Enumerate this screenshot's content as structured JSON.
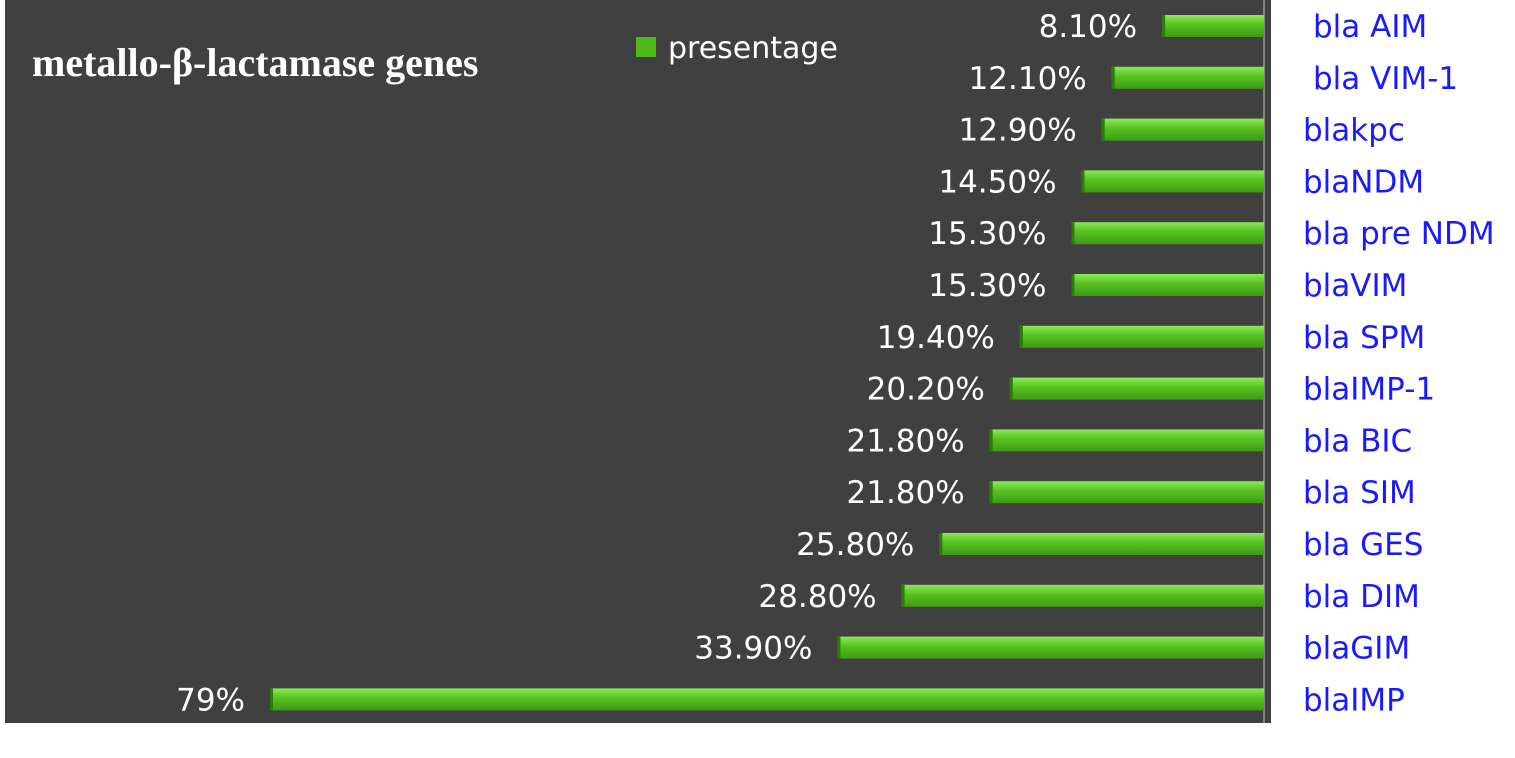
{
  "chart_data": {
    "type": "bar",
    "orientation": "horizontal",
    "title": "metallo-β-lactamase genes",
    "xlabel": "",
    "ylabel": "",
    "grid": false,
    "legend_position": "top",
    "xlim": [
      0,
      79
    ],
    "categories": [
      "bla AIM",
      "bla VIM-1",
      "blakpc",
      "blaNDM",
      "bla pre NDM",
      "blaVIM",
      "bla SPM",
      "blaIMP-1",
      "bla BIC",
      "bla SIM",
      "bla GES",
      "bla DIM",
      "blaGIM",
      "blaIMP"
    ],
    "series": [
      {
        "name": "presentage",
        "values": [
          8.1,
          12.1,
          12.9,
          14.5,
          15.3,
          15.3,
          19.4,
          20.2,
          21.8,
          21.8,
          25.8,
          28.8,
          33.9,
          79
        ],
        "labels": [
          "8.10%",
          "12.10%",
          "12.90%",
          "14.50%",
          "15.30%",
          "15.30%",
          "19.40%",
          "20.20%",
          "21.80%",
          "21.80%",
          "25.80%",
          "28.80%",
          "33.90%",
          "79%"
        ]
      }
    ],
    "colors": {
      "plot_background": "#404040",
      "bar": "#4fb81a",
      "bar_highlight": "#7ee04a",
      "data_label": "#ffffff",
      "category_label": "#1a1aff"
    }
  }
}
